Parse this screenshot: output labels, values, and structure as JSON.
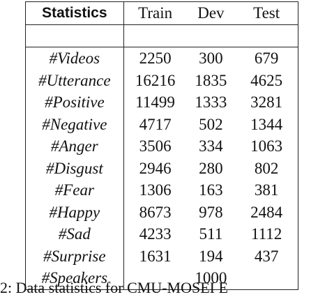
{
  "table": {
    "header": {
      "label": "Statistics",
      "columns": [
        "Train",
        "Dev",
        "Test"
      ]
    },
    "rows": [
      {
        "label": "#Videos",
        "values": [
          "2250",
          "300",
          "679"
        ]
      },
      {
        "label": "#Utterance",
        "values": [
          "16216",
          "1835",
          "4625"
        ]
      },
      {
        "label": "#Positive",
        "values": [
          "11499",
          "1333",
          "3281"
        ]
      },
      {
        "label": "#Negative",
        "values": [
          "4717",
          "502",
          "1344"
        ]
      },
      {
        "label": "#Anger",
        "values": [
          "3506",
          "334",
          "1063"
        ]
      },
      {
        "label": "#Disgust",
        "values": [
          "2946",
          "280",
          "802"
        ]
      },
      {
        "label": "#Fear",
        "values": [
          "1306",
          "163",
          "381"
        ]
      },
      {
        "label": "#Happy",
        "values": [
          "8673",
          "978",
          "2484"
        ]
      },
      {
        "label": "#Sad",
        "values": [
          "4233",
          "511",
          "1112"
        ]
      },
      {
        "label": "#Surprise",
        "values": [
          "1631",
          "194",
          "437"
        ]
      }
    ],
    "speakers": {
      "label": "#Speakers",
      "value": "1000"
    }
  },
  "caption": {
    "text": "2: Data statistics for CMU-MOSEI E"
  }
}
